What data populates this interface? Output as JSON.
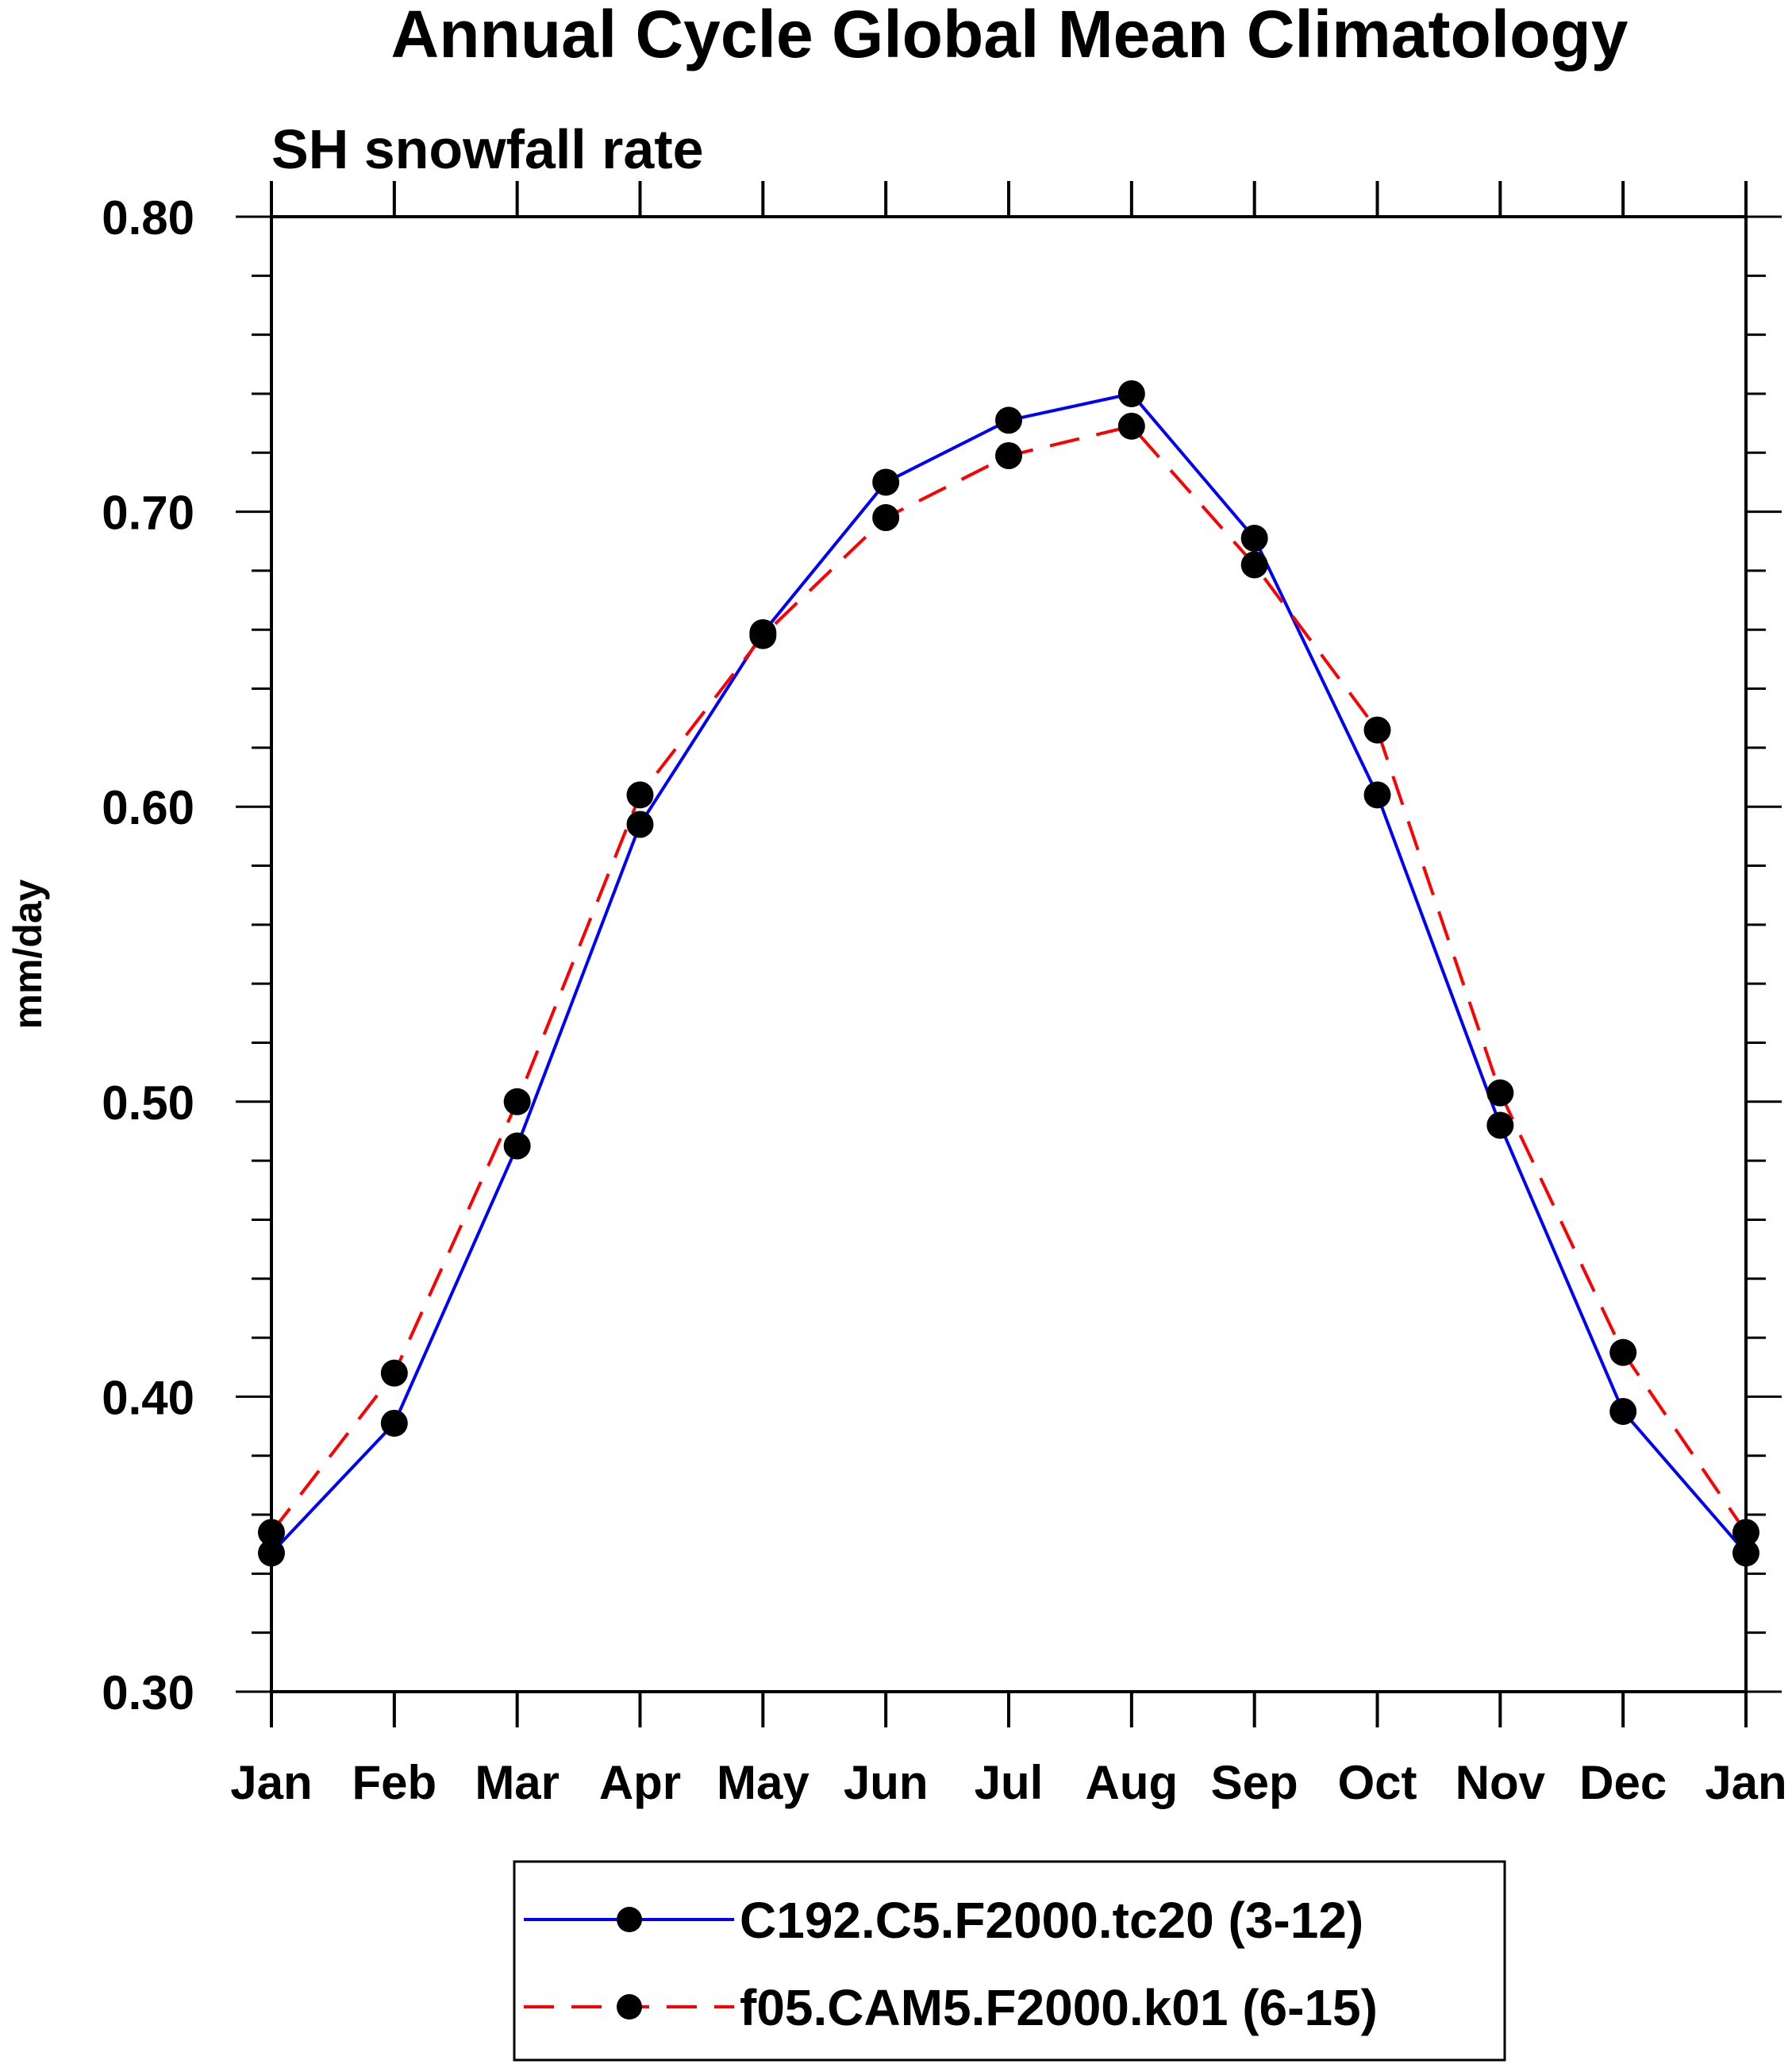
{
  "chart_data": {
    "type": "line",
    "title": "Annual Cycle Global Mean Climatology",
    "subtitle": "SH snowfall rate",
    "xlabel": "",
    "ylabel": "mm/day",
    "categories": [
      "Jan",
      "Feb",
      "Mar",
      "Apr",
      "May",
      "Jun",
      "Jul",
      "Aug",
      "Sep",
      "Oct",
      "Nov",
      "Dec",
      "Jan"
    ],
    "ylim": [
      0.3,
      0.8
    ],
    "yticks": [
      "0.30",
      "0.40",
      "0.50",
      "0.60",
      "0.70",
      "0.80"
    ],
    "grid": false,
    "legend_position": "bottom-center",
    "series": [
      {
        "name": "C192.C5.F2000.tc20 (3-12)",
        "color": "#0000ff",
        "line_style": "solid",
        "marker": "filled-circle",
        "values": [
          0.347,
          0.391,
          0.485,
          0.594,
          0.659,
          0.71,
          0.731,
          0.74,
          0.691,
          0.604,
          0.492,
          0.395,
          0.347
        ]
      },
      {
        "name": "f05.CAM5.F2000.k01 (6-15)",
        "color": "#ff0000",
        "line_style": "dashed",
        "marker": "filled-circle",
        "values": [
          0.354,
          0.408,
          0.5,
          0.604,
          0.658,
          0.698,
          0.719,
          0.729,
          0.682,
          0.626,
          0.503,
          0.415,
          0.354
        ]
      }
    ]
  }
}
